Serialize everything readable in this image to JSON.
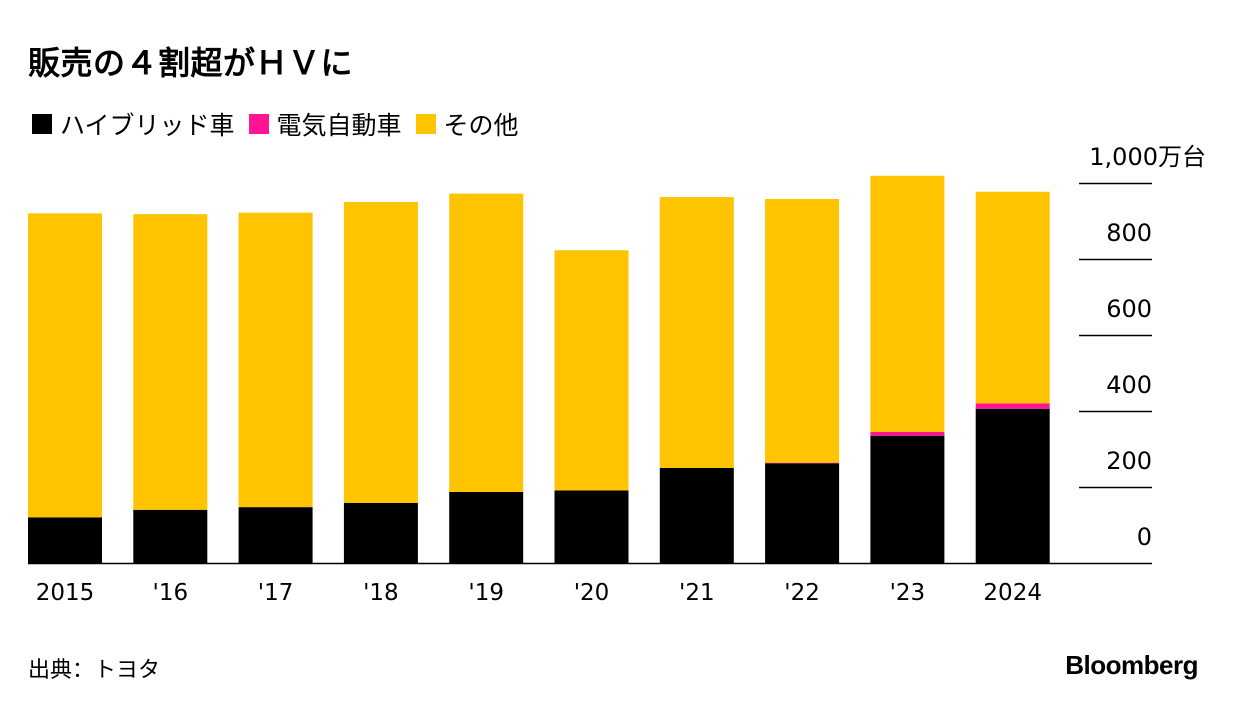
{
  "title": "販売の４割超がＨＶに",
  "legend": [
    {
      "label": "ハイブリッド車",
      "color": "#000000"
    },
    {
      "label": "電気自動車",
      "color": "#ff1493"
    },
    {
      "label": "その他",
      "color": "#ffc400"
    }
  ],
  "source": "出典：トヨタ",
  "brand": "Bloomberg",
  "chart_data": {
    "type": "bar",
    "stacked": true,
    "categories": [
      "2015",
      "'16",
      "'17",
      "'18",
      "'19",
      "'20",
      "'21",
      "'22",
      "'23",
      "2024"
    ],
    "series": [
      {
        "name": "ハイブリッド車",
        "color": "#000000",
        "values": [
          120,
          140,
          147,
          158,
          187,
          191,
          250,
          262,
          335,
          406
        ]
      },
      {
        "name": "電気自動車",
        "color": "#ff1493",
        "values": [
          0,
          0,
          0,
          0,
          0,
          0,
          0,
          2,
          10,
          14
        ]
      },
      {
        "name": "その他",
        "color": "#ffc400",
        "values": [
          800,
          778,
          775,
          792,
          785,
          632,
          713,
          694,
          674,
          557
        ]
      }
    ],
    "ylim": [
      0,
      1000
    ],
    "yticks": [
      0,
      200,
      400,
      600,
      800,
      1000
    ],
    "ytick_labels": [
      "0",
      "200",
      "400",
      "600",
      "800",
      "1,000万台"
    ],
    "yaxis_position": "right",
    "grid": false,
    "legend_position": "top-left"
  }
}
